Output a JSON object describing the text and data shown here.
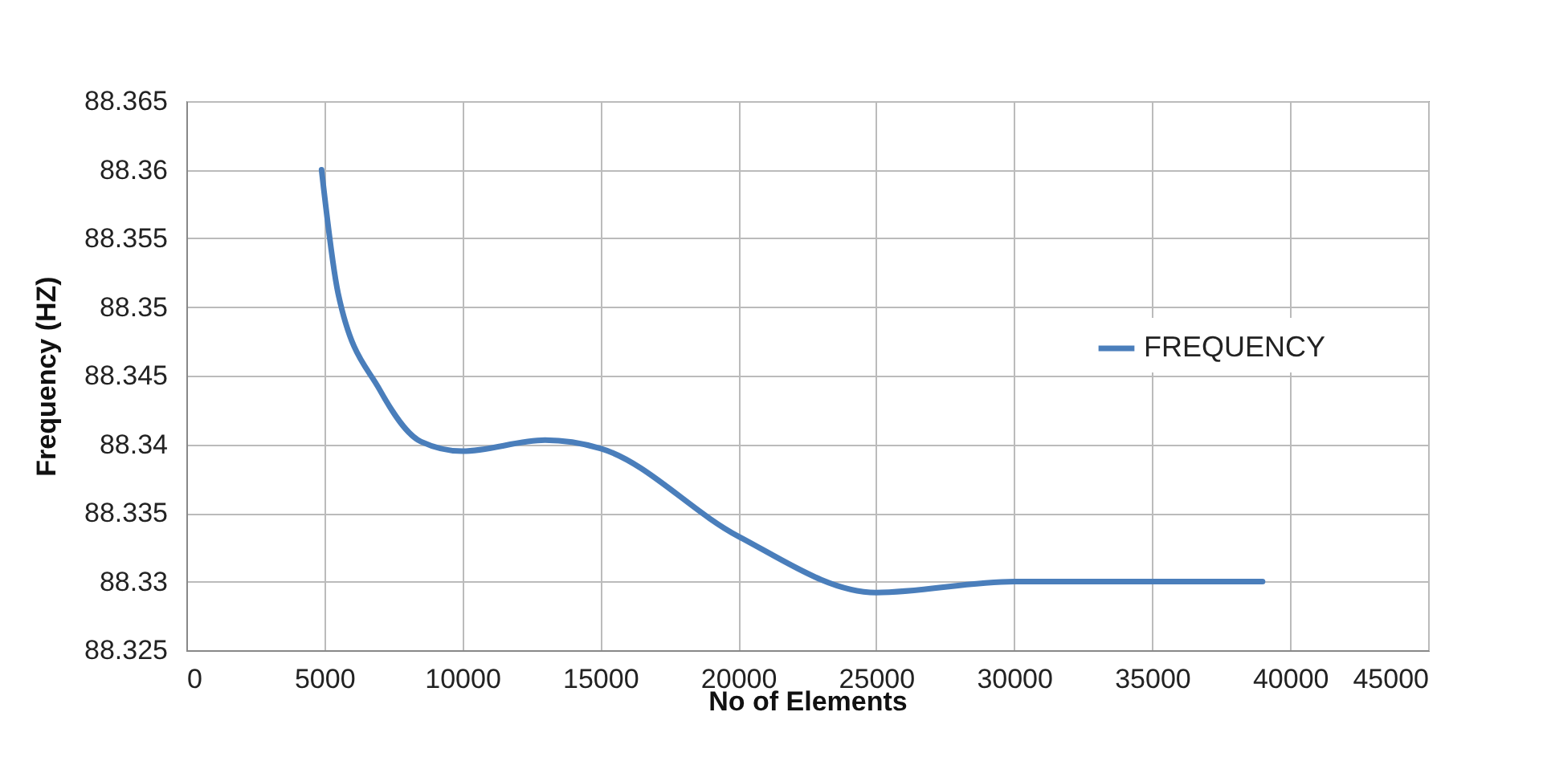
{
  "chart_data": {
    "type": "line",
    "xlabel": "No of Elements",
    "ylabel": "Frequency (HZ)",
    "x": [
      4900,
      5500,
      7000,
      8500,
      10000,
      13000,
      15000,
      20000,
      25000,
      30000,
      39000
    ],
    "series": [
      {
        "name": "FREQUENCY",
        "color": "#4a7ebb",
        "values": [
          88.36,
          88.351,
          88.344,
          88.3402,
          88.3395,
          88.3403,
          88.3397,
          88.3333,
          88.3292,
          88.33,
          88.33
        ]
      }
    ],
    "xlim": [
      0,
      45000
    ],
    "xticks": [
      0,
      5000,
      10000,
      15000,
      20000,
      25000,
      30000,
      35000,
      40000,
      45000
    ],
    "ylim": [
      88.325,
      88.365
    ],
    "yticks": [
      88.325,
      88.33,
      88.335,
      88.34,
      88.345,
      88.35,
      88.355,
      88.36,
      88.365
    ],
    "grid": true,
    "legend": "right",
    "marker": "none",
    "line_style": "solid"
  }
}
